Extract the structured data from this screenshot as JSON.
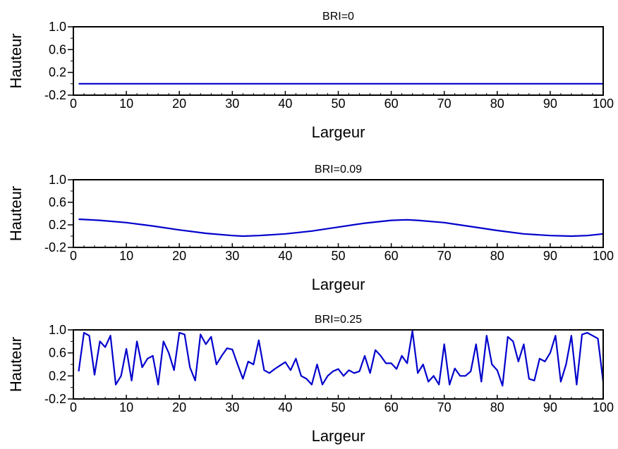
{
  "chart_data": [
    {
      "type": "line",
      "title": "BRI=0",
      "xlabel": "Largeur",
      "ylabel": "Hauteur",
      "xlim": [
        0,
        100
      ],
      "ylim": [
        -0.2,
        1.0
      ],
      "x_ticks": [
        "0",
        "10",
        "20",
        "30",
        "40",
        "50",
        "60",
        "70",
        "80",
        "90",
        "100"
      ],
      "y_ticks": [
        "1.0",
        "0.6",
        "0.2",
        "-0.2"
      ],
      "line_color": "#0000cc",
      "series": [
        {
          "x": [
            1,
            100
          ],
          "y": [
            0.0,
            0.0
          ]
        }
      ]
    },
    {
      "type": "line",
      "title": "BRI=0.09",
      "xlabel": "Largeur",
      "ylabel": "Hauteur",
      "xlim": [
        0,
        100
      ],
      "ylim": [
        -0.2,
        1.0
      ],
      "x_ticks": [
        "0",
        "10",
        "20",
        "30",
        "40",
        "50",
        "60",
        "70",
        "80",
        "90",
        "100"
      ],
      "y_ticks": [
        "1.0",
        "0.6",
        "0.2",
        "-0.2"
      ],
      "line_color": "#0000cc",
      "series": [
        {
          "x": [
            1,
            5,
            10,
            15,
            20,
            25,
            30,
            32,
            35,
            40,
            45,
            50,
            55,
            60,
            63,
            65,
            70,
            75,
            80,
            85,
            90,
            94,
            97,
            100
          ],
          "y": [
            0.3,
            0.28,
            0.24,
            0.18,
            0.11,
            0.05,
            0.01,
            0.0,
            0.01,
            0.04,
            0.09,
            0.16,
            0.23,
            0.28,
            0.29,
            0.28,
            0.24,
            0.17,
            0.1,
            0.04,
            0.01,
            0.0,
            0.01,
            0.04
          ]
        }
      ]
    },
    {
      "type": "line",
      "title": "BRI=0.25",
      "xlabel": "Largeur",
      "ylabel": "Hauteur",
      "xlim": [
        0,
        100
      ],
      "ylim": [
        -0.2,
        1.0
      ],
      "x_ticks": [
        "0",
        "10",
        "20",
        "30",
        "40",
        "50",
        "60",
        "70",
        "80",
        "90",
        "100"
      ],
      "y_ticks": [
        "1.0",
        "0.6",
        "0.2",
        "-0.2"
      ],
      "line_color": "#0000cc",
      "series": [
        {
          "x": [
            1,
            2,
            3,
            4,
            5,
            6,
            7,
            8,
            9,
            10,
            11,
            12,
            13,
            14,
            15,
            16,
            17,
            18,
            19,
            20,
            21,
            22,
            23,
            24,
            25,
            26,
            27,
            28,
            29,
            30,
            31,
            32,
            33,
            34,
            35,
            36,
            37,
            38,
            39,
            40,
            41,
            42,
            43,
            44,
            45,
            46,
            47,
            48,
            49,
            50,
            51,
            52,
            53,
            54,
            55,
            56,
            57,
            58,
            59,
            60,
            61,
            62,
            63,
            64,
            65,
            66,
            67,
            68,
            69,
            70,
            71,
            72,
            73,
            74,
            75,
            76,
            77,
            78,
            79,
            80,
            81,
            82,
            83,
            84,
            85,
            86,
            87,
            88,
            89,
            90,
            91,
            92,
            93,
            94,
            95,
            96,
            97,
            98,
            99,
            100
          ],
          "y": [
            0.28,
            0.95,
            0.9,
            0.22,
            0.8,
            0.7,
            0.9,
            0.05,
            0.2,
            0.67,
            0.12,
            0.8,
            0.35,
            0.5,
            0.55,
            0.05,
            0.8,
            0.6,
            0.3,
            0.95,
            0.92,
            0.35,
            0.12,
            0.92,
            0.75,
            0.88,
            0.4,
            0.55,
            0.68,
            0.66,
            0.4,
            0.15,
            0.45,
            0.4,
            0.82,
            0.3,
            0.25,
            0.32,
            0.38,
            0.44,
            0.3,
            0.5,
            0.2,
            0.15,
            0.05,
            0.4,
            0.05,
            0.2,
            0.28,
            0.32,
            0.2,
            0.3,
            0.25,
            0.28,
            0.55,
            0.25,
            0.65,
            0.55,
            0.42,
            0.42,
            0.32,
            0.55,
            0.42,
            0.98,
            0.25,
            0.4,
            0.1,
            0.2,
            0.05,
            0.75,
            0.05,
            0.33,
            0.2,
            0.2,
            0.28,
            0.75,
            0.1,
            0.9,
            0.4,
            0.3,
            0.03,
            0.88,
            0.8,
            0.45,
            0.75,
            0.15,
            0.12,
            0.5,
            0.45,
            0.6,
            0.9,
            0.1,
            0.4,
            0.9,
            0.05,
            0.92,
            0.95,
            0.9,
            0.85,
            0.1
          ]
        }
      ]
    }
  ]
}
